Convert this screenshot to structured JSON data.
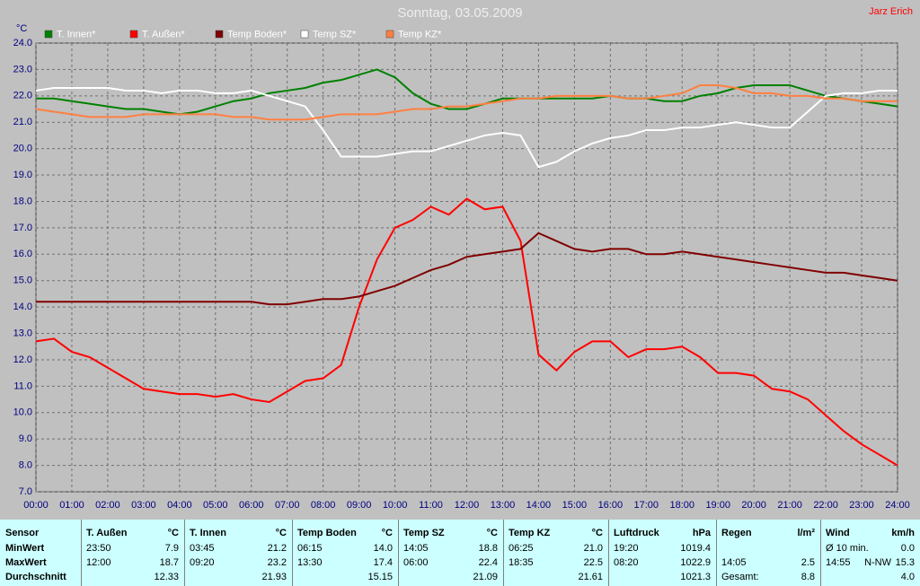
{
  "chart_data": {
    "type": "line",
    "title": "Sonntag, 03.05.2009",
    "corner_text": "Jarz Erich",
    "y_label": "°C",
    "x": [
      0,
      0.5,
      1,
      1.5,
      2,
      2.5,
      3,
      3.5,
      4,
      4.5,
      5,
      5.5,
      6,
      6.5,
      7,
      7.5,
      8,
      8.5,
      9,
      9.5,
      10,
      10.5,
      11,
      11.5,
      12,
      12.5,
      13,
      13.5,
      14,
      14.5,
      15,
      15.5,
      16,
      16.5,
      17,
      17.5,
      18,
      18.5,
      19,
      19.5,
      20,
      20.5,
      21,
      21.5,
      22,
      22.5,
      23,
      23.5,
      24
    ],
    "xlim": [
      0,
      24
    ],
    "xticks": [
      {
        "value": 0,
        "label": "00:00"
      },
      {
        "value": 1,
        "label": "01:00"
      },
      {
        "value": 2,
        "label": "02:00"
      },
      {
        "value": 3,
        "label": "03:00"
      },
      {
        "value": 4,
        "label": "04:00"
      },
      {
        "value": 5,
        "label": "05:00"
      },
      {
        "value": 6,
        "label": "06:00"
      },
      {
        "value": 7,
        "label": "07:00"
      },
      {
        "value": 8,
        "label": "08:00"
      },
      {
        "value": 9,
        "label": "09:00"
      },
      {
        "value": 10,
        "label": "10:00"
      },
      {
        "value": 11,
        "label": "11:00"
      },
      {
        "value": 12,
        "label": "12:00"
      },
      {
        "value": 13,
        "label": "13:00"
      },
      {
        "value": 14,
        "label": "14:00"
      },
      {
        "value": 15,
        "label": "15:00"
      },
      {
        "value": 16,
        "label": "16:00"
      },
      {
        "value": 17,
        "label": "17:00"
      },
      {
        "value": 18,
        "label": "18:00"
      },
      {
        "value": 19,
        "label": "19:00"
      },
      {
        "value": 20,
        "label": "20:00"
      },
      {
        "value": 21,
        "label": "21:00"
      },
      {
        "value": 22,
        "label": "22:00"
      },
      {
        "value": 23,
        "label": "23:00"
      },
      {
        "value": 24,
        "label": "24:00"
      }
    ],
    "ylim": [
      7,
      24
    ],
    "yticks": [
      {
        "value": 7,
        "label": "7.0"
      },
      {
        "value": 8,
        "label": "8.0"
      },
      {
        "value": 9,
        "label": "9.0"
      },
      {
        "value": 10,
        "label": "10.0"
      },
      {
        "value": 11,
        "label": "11.0"
      },
      {
        "value": 12,
        "label": "12.0"
      },
      {
        "value": 13,
        "label": "13.0"
      },
      {
        "value": 14,
        "label": "14.0"
      },
      {
        "value": 15,
        "label": "15.0"
      },
      {
        "value": 16,
        "label": "16.0"
      },
      {
        "value": 17,
        "label": "17.0"
      },
      {
        "value": 18,
        "label": "18.0"
      },
      {
        "value": 19,
        "label": "19.0"
      },
      {
        "value": 20,
        "label": "20.0"
      },
      {
        "value": 21,
        "label": "21.0"
      },
      {
        "value": 22,
        "label": "22.0"
      },
      {
        "value": 23,
        "label": "23.0"
      },
      {
        "value": 24,
        "label": "24.0"
      }
    ],
    "grid": true,
    "series": [
      {
        "name": "T. Innen*",
        "color": "#008000",
        "values": [
          21.9,
          21.9,
          21.8,
          21.7,
          21.6,
          21.5,
          21.5,
          21.4,
          21.3,
          21.4,
          21.6,
          21.8,
          21.9,
          22.1,
          22.2,
          22.3,
          22.5,
          22.6,
          22.8,
          23.0,
          22.7,
          22.1,
          21.7,
          21.5,
          21.5,
          21.7,
          21.9,
          21.9,
          21.9,
          21.9,
          21.9,
          21.9,
          22.0,
          21.9,
          21.9,
          21.8,
          21.8,
          22.0,
          22.1,
          22.3,
          22.4,
          22.4,
          22.4,
          22.2,
          22.0,
          21.9,
          21.8,
          21.7,
          21.6
        ]
      },
      {
        "name": "T. Außen*",
        "color": "#ff0000",
        "values": [
          12.7,
          12.8,
          12.3,
          12.1,
          11.7,
          11.3,
          10.9,
          10.8,
          10.7,
          10.7,
          10.6,
          10.7,
          10.5,
          10.4,
          10.8,
          11.2,
          11.3,
          11.8,
          14.0,
          15.8,
          17.0,
          17.3,
          17.8,
          17.5,
          18.1,
          17.7,
          17.8,
          16.5,
          12.2,
          11.6,
          12.3,
          12.7,
          12.7,
          12.1,
          12.4,
          12.4,
          12.5,
          12.1,
          11.5,
          11.5,
          11.4,
          10.9,
          10.8,
          10.5,
          9.9,
          9.3,
          8.8,
          8.4,
          8.0
        ]
      },
      {
        "name": "Temp Boden*",
        "color": "#800000",
        "values": [
          14.2,
          14.2,
          14.2,
          14.2,
          14.2,
          14.2,
          14.2,
          14.2,
          14.2,
          14.2,
          14.2,
          14.2,
          14.2,
          14.1,
          14.1,
          14.2,
          14.3,
          14.3,
          14.4,
          14.6,
          14.8,
          15.1,
          15.4,
          15.6,
          15.9,
          16.0,
          16.1,
          16.2,
          16.8,
          16.5,
          16.2,
          16.1,
          16.2,
          16.2,
          16.0,
          16.0,
          16.1,
          16.0,
          15.9,
          15.8,
          15.7,
          15.6,
          15.5,
          15.4,
          15.3,
          15.3,
          15.2,
          15.1,
          15.0
        ]
      },
      {
        "name": "Temp SZ*",
        "color": "#ffffff",
        "values": [
          22.2,
          22.3,
          22.3,
          22.3,
          22.3,
          22.2,
          22.2,
          22.1,
          22.2,
          22.2,
          22.1,
          22.1,
          22.2,
          22.0,
          21.8,
          21.6,
          20.7,
          19.7,
          19.7,
          19.7,
          19.8,
          19.9,
          19.9,
          20.1,
          20.3,
          20.5,
          20.6,
          20.5,
          19.3,
          19.5,
          19.9,
          20.2,
          20.4,
          20.5,
          20.7,
          20.7,
          20.8,
          20.8,
          20.9,
          21.0,
          20.9,
          20.8,
          20.8,
          21.4,
          22.0,
          22.1,
          22.1,
          22.2,
          22.2
        ]
      },
      {
        "name": "Temp KZ*",
        "color": "#ff8040",
        "values": [
          21.5,
          21.4,
          21.3,
          21.2,
          21.2,
          21.2,
          21.3,
          21.3,
          21.3,
          21.3,
          21.3,
          21.2,
          21.2,
          21.1,
          21.1,
          21.1,
          21.2,
          21.3,
          21.3,
          21.3,
          21.4,
          21.5,
          21.5,
          21.6,
          21.6,
          21.7,
          21.8,
          21.9,
          21.9,
          22.0,
          22.0,
          22.0,
          22.0,
          21.9,
          21.9,
          22.0,
          22.1,
          22.4,
          22.4,
          22.3,
          22.1,
          22.1,
          22.0,
          22.0,
          21.9,
          21.9,
          21.8,
          21.8,
          21.8
        ]
      }
    ]
  },
  "table": {
    "row_header": "Sensor",
    "row_labels": [
      "MinWert",
      "MaxWert",
      "Durchschnitt"
    ],
    "columns": [
      {
        "name": "T. Außen",
        "unit": "°C",
        "cells": [
          [
            "23:50",
            "7.9"
          ],
          [
            "12:00",
            "18.7"
          ],
          [
            "12.33"
          ]
        ]
      },
      {
        "name": "T. Innen",
        "unit": "°C",
        "cells": [
          [
            "03:45",
            "21.2"
          ],
          [
            "09:20",
            "23.2"
          ],
          [
            "21.93"
          ]
        ]
      },
      {
        "name": "Temp Boden",
        "unit": "°C",
        "cells": [
          [
            "06:15",
            "14.0"
          ],
          [
            "13:30",
            "17.4"
          ],
          [
            "15.15"
          ]
        ]
      },
      {
        "name": "Temp SZ",
        "unit": "°C",
        "cells": [
          [
            "14:05",
            "18.8"
          ],
          [
            "06:00",
            "22.4"
          ],
          [
            "21.09"
          ]
        ]
      },
      {
        "name": "Temp KZ",
        "unit": "°C",
        "cells": [
          [
            "06:25",
            "21.0"
          ],
          [
            "18:35",
            "22.5"
          ],
          [
            "21.61"
          ]
        ]
      },
      {
        "name": "Luftdruck",
        "unit": "hPa",
        "cells": [
          [
            "19:20",
            "1019.4"
          ],
          [
            "08:20",
            "1022.9"
          ],
          [
            "1021.3"
          ]
        ]
      },
      {
        "name": "Regen",
        "unit": "l/m²",
        "cells": [
          [],
          [
            "14:05",
            "2.5"
          ],
          [
            "Gesamt:",
            "8.8"
          ]
        ]
      },
      {
        "name": "Wind",
        "unit": "km/h",
        "cells": [
          [
            "Ø 10 min.",
            "0.0"
          ],
          [
            "14:55",
            "N-NW",
            "15.3"
          ],
          [
            "4.0"
          ]
        ]
      }
    ]
  }
}
